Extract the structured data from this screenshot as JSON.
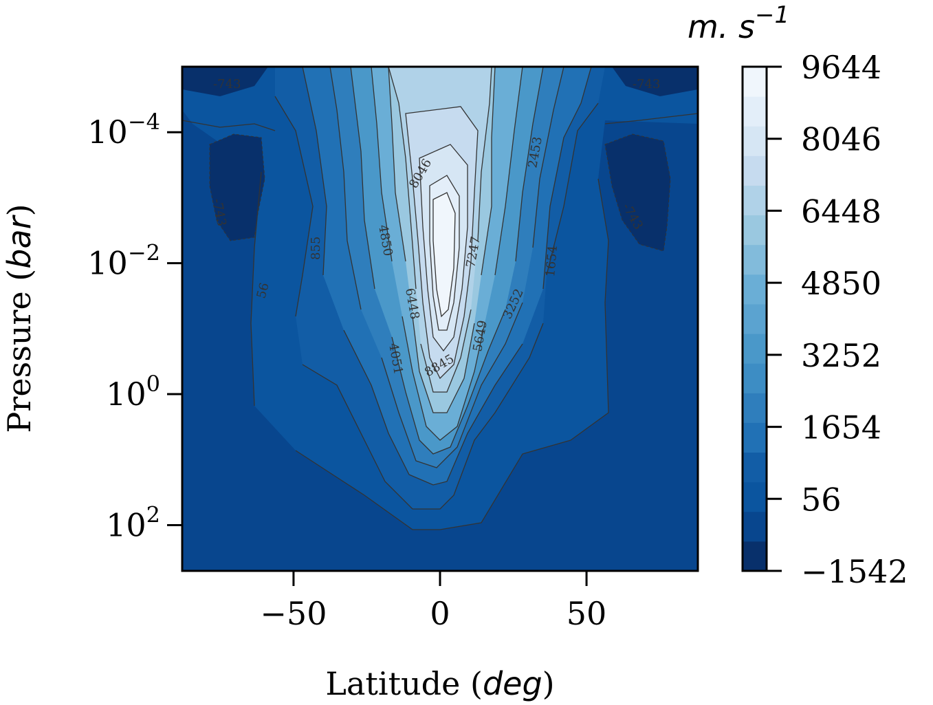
{
  "chart_data": {
    "type": "contour",
    "xlabel": {
      "text": "Latitude (",
      "italic": "deg",
      "close": ")"
    },
    "ylabel": {
      "text": "Pressure (",
      "italic": "bar",
      "close": ")"
    },
    "x_ticks": [
      "−50",
      "0",
      "50"
    ],
    "x_tick_values": [
      -50,
      0,
      50
    ],
    "xlim": [
      -88,
      88
    ],
    "y_scale": "log",
    "y_inverted": true,
    "ylim": [
      1e-05,
      500
    ],
    "y_ticks": [
      {
        "value": 0.0001,
        "base": "10",
        "exp": "−4"
      },
      {
        "value": 0.01,
        "base": "10",
        "exp": "−2"
      },
      {
        "value": 1,
        "base": "10",
        "exp": "0"
      },
      {
        "value": 100,
        "base": "10",
        "exp": "2"
      }
    ],
    "colorbar": {
      "title": "m. s",
      "title_exp": "−1",
      "levels": [
        -1542,
        -743,
        56,
        855,
        1654,
        2453,
        3252,
        4051,
        4850,
        5649,
        6448,
        7247,
        8046,
        8845,
        9644
      ],
      "tick_labels": [
        "−1542",
        "56",
        "1654",
        "3252",
        "4850",
        "6448",
        "8046",
        "9644"
      ],
      "tick_values": [
        -1542,
        56,
        1654,
        3252,
        4850,
        6448,
        8046,
        9644
      ],
      "colors": [
        "#08306b",
        "#08468e",
        "#0b559f",
        "#125da6",
        "#2171b5",
        "#2f7ebc",
        "#3d8dc4",
        "#4a98c9",
        "#5ba3d0",
        "#6aaed6",
        "#82bbdb",
        "#9ac8e0",
        "#b0d2e8",
        "#c6dbef",
        "#d6e6f4",
        "#e3eef9",
        "#f0f6fc"
      ]
    },
    "contour_labels": [
      "-743",
      "-743",
      "-743",
      "-743",
      "56",
      "855",
      "1654",
      "2453",
      "3252",
      "4051",
      "4850",
      "5649",
      "6448",
      "7247",
      "8046",
      "8845"
    ],
    "jet": {
      "center_lat": 0,
      "max_speed": 9644,
      "max_pressure_bar": 0.01
    }
  }
}
